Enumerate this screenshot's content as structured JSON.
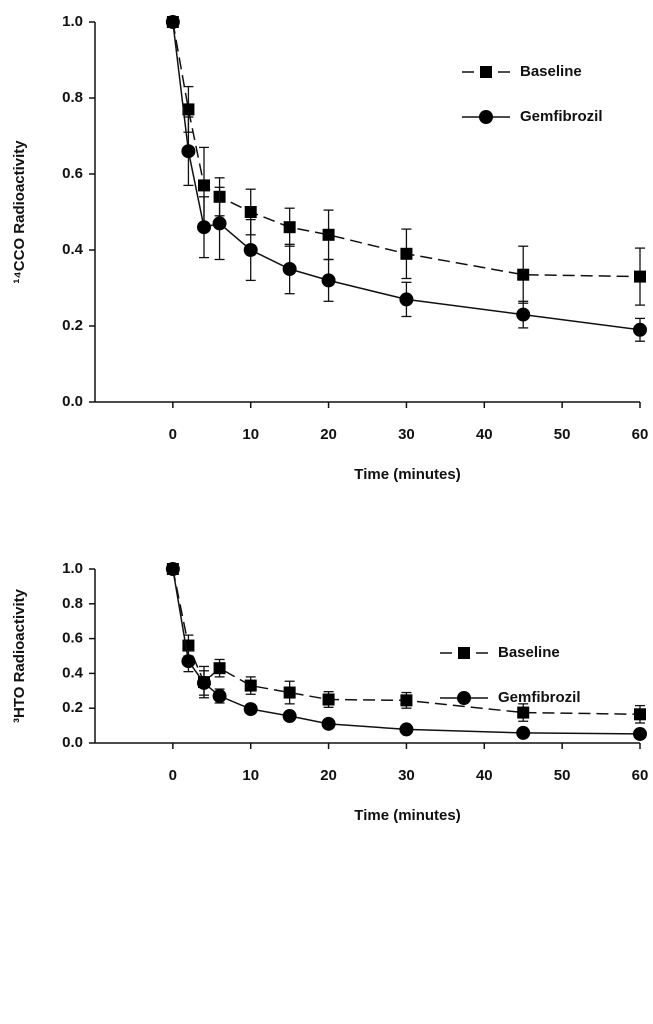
{
  "chart_data": [
    {
      "type": "line",
      "xlabel": "Time (minutes)",
      "ylabel": "¹⁴CCO Radioactivity",
      "x": [
        0,
        2,
        4,
        6,
        10,
        15,
        20,
        30,
        45,
        60
      ],
      "xlim": [
        -10,
        60
      ],
      "xticks": [
        0,
        10,
        20,
        30,
        40,
        50,
        60
      ],
      "ylim": [
        0,
        1
      ],
      "yticks": [
        {
          "value": 0,
          "label": "0.0"
        },
        {
          "value": 0.2,
          "label": "0.2"
        },
        {
          "value": 0.4,
          "label": "0.4"
        },
        {
          "value": 0.6,
          "label": "0.6"
        },
        {
          "value": 0.8,
          "label": "0.8"
        },
        {
          "value": 1,
          "label": "1.0"
        }
      ],
      "legend": "upper right",
      "series": [
        {
          "name": "Baseline",
          "color": "#000000",
          "line_style": "dashed",
          "marker": "square",
          "values": [
            1.0,
            0.77,
            0.57,
            0.54,
            0.5,
            0.46,
            0.44,
            0.39,
            0.335,
            0.33
          ],
          "errors": [
            0,
            0.06,
            0.1,
            0.05,
            0.06,
            0.05,
            0.065,
            0.065,
            0.075,
            0.075
          ]
        },
        {
          "name": "Gemfibrozil",
          "color": "#000000",
          "line_style": "solid",
          "marker": "circle",
          "values": [
            1.0,
            0.66,
            0.46,
            0.47,
            0.4,
            0.35,
            0.32,
            0.27,
            0.23,
            0.19
          ],
          "errors": [
            0,
            0.09,
            0.08,
            0.095,
            0.08,
            0.065,
            0.055,
            0.045,
            0.035,
            0.03
          ]
        }
      ]
    },
    {
      "type": "line",
      "xlabel": "Time (minutes)",
      "ylabel": "³HTO Radioactivity",
      "x": [
        0,
        2,
        4,
        6,
        10,
        15,
        20,
        30,
        45,
        60
      ],
      "xlim": [
        -10,
        60
      ],
      "xticks": [
        0,
        10,
        20,
        30,
        40,
        50,
        60
      ],
      "ylim": [
        0,
        1
      ],
      "yticks": [
        {
          "value": 0,
          "label": "0.0"
        },
        {
          "value": 0.2,
          "label": "0.2"
        },
        {
          "value": 0.4,
          "label": "0.4"
        },
        {
          "value": 0.6,
          "label": "0.6"
        },
        {
          "value": 0.8,
          "label": "0.8"
        },
        {
          "value": 1,
          "label": "1.0"
        }
      ],
      "legend": "upper right",
      "series": [
        {
          "name": "Baseline",
          "color": "#000000",
          "line_style": "dashed",
          "marker": "square",
          "values": [
            1.0,
            0.56,
            0.35,
            0.43,
            0.33,
            0.29,
            0.25,
            0.245,
            0.175,
            0.165
          ],
          "errors": [
            0,
            0.06,
            0.09,
            0.05,
            0.05,
            0.065,
            0.045,
            0.045,
            0.05,
            0.05
          ]
        },
        {
          "name": "Gemfibrozil",
          "color": "#000000",
          "line_style": "solid",
          "marker": "circle",
          "values": [
            1.0,
            0.47,
            0.345,
            0.27,
            0.195,
            0.155,
            0.11,
            0.078,
            0.058,
            0.052
          ],
          "errors": [
            0,
            0.06,
            0.07,
            0.04,
            0.02,
            0.025,
            0.015,
            0.01,
            0.008,
            0.008
          ]
        }
      ]
    }
  ]
}
